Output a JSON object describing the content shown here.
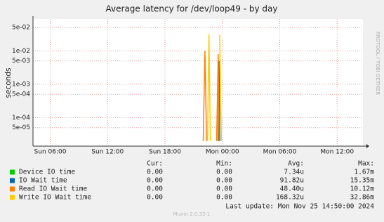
{
  "chart_data": {
    "type": "line",
    "title": "Average latency for /dev/loop49 - by day",
    "y_label": "seconds",
    "side_text": "RRDTOOL / TOBI OETIKER",
    "log_y": true,
    "grid": true,
    "xlim": [
      4.2,
      38.7
    ],
    "xticks": [
      {
        "value": 6,
        "label": "Sun 06:00"
      },
      {
        "value": 12,
        "label": "Sun 12:00"
      },
      {
        "value": 18,
        "label": "Sun 18:00"
      },
      {
        "value": 24,
        "label": "Mon 00:00"
      },
      {
        "value": 30,
        "label": "Mon 06:00"
      },
      {
        "value": 36,
        "label": "Mon 12:00"
      }
    ],
    "ylim": [
      1.4e-05,
      0.09
    ],
    "yticks": [
      {
        "value": 0.05,
        "label": "5e-02"
      },
      {
        "value": 0.01,
        "label": "1e-02"
      },
      {
        "value": 0.005,
        "label": "5e-03"
      },
      {
        "value": 0.001,
        "label": "1e-03"
      },
      {
        "value": 0.0005,
        "label": "5e-04"
      },
      {
        "value": 0.0001,
        "label": "1e-04"
      },
      {
        "value": 5e-05,
        "label": "5e-05"
      }
    ],
    "x": [
      22.0,
      22.18,
      22.35,
      22.45,
      22.6,
      22.75,
      23.4,
      23.57,
      23.65,
      23.72,
      23.9
    ],
    "series": [
      {
        "name": "Device IO time",
        "color": "#00cc00",
        "values": [
          null,
          null,
          null,
          null,
          null,
          null,
          null,
          2e-05,
          0.002,
          2e-05,
          null
        ]
      },
      {
        "name": "IO Wait time",
        "color": "#0066b3",
        "values": [
          null,
          null,
          null,
          null,
          null,
          null,
          null,
          2e-05,
          0.005,
          2e-05,
          null
        ]
      },
      {
        "name": "Read IO Wait time",
        "color": "#ff8000",
        "values": [
          2e-05,
          0.01,
          2e-05,
          null,
          null,
          null,
          2e-05,
          0.008,
          2e-05,
          null,
          null
        ]
      },
      {
        "name": "Write IO Wait time",
        "color": "#ffcc00",
        "values": [
          null,
          null,
          null,
          2e-05,
          0.032,
          2e-05,
          null,
          2e-05,
          null,
          0.03,
          2e-05
        ]
      }
    ],
    "stats_headers": [
      "Cur:",
      "Min:",
      "Avg:",
      "Max:"
    ],
    "stats": [
      [
        "0.00",
        "0.00",
        "7.34u",
        "1.67m"
      ],
      [
        "0.00",
        "0.00",
        "91.82u",
        "15.35m"
      ],
      [
        "0.00",
        "0.00",
        "48.40u",
        "10.12m"
      ],
      [
        "0.00",
        "0.00",
        "168.32u",
        "32.86m"
      ]
    ],
    "last_update": "Last update:  Mon Nov 25 14:50:00 2024",
    "footer": "Munin 2.0.33-1"
  }
}
